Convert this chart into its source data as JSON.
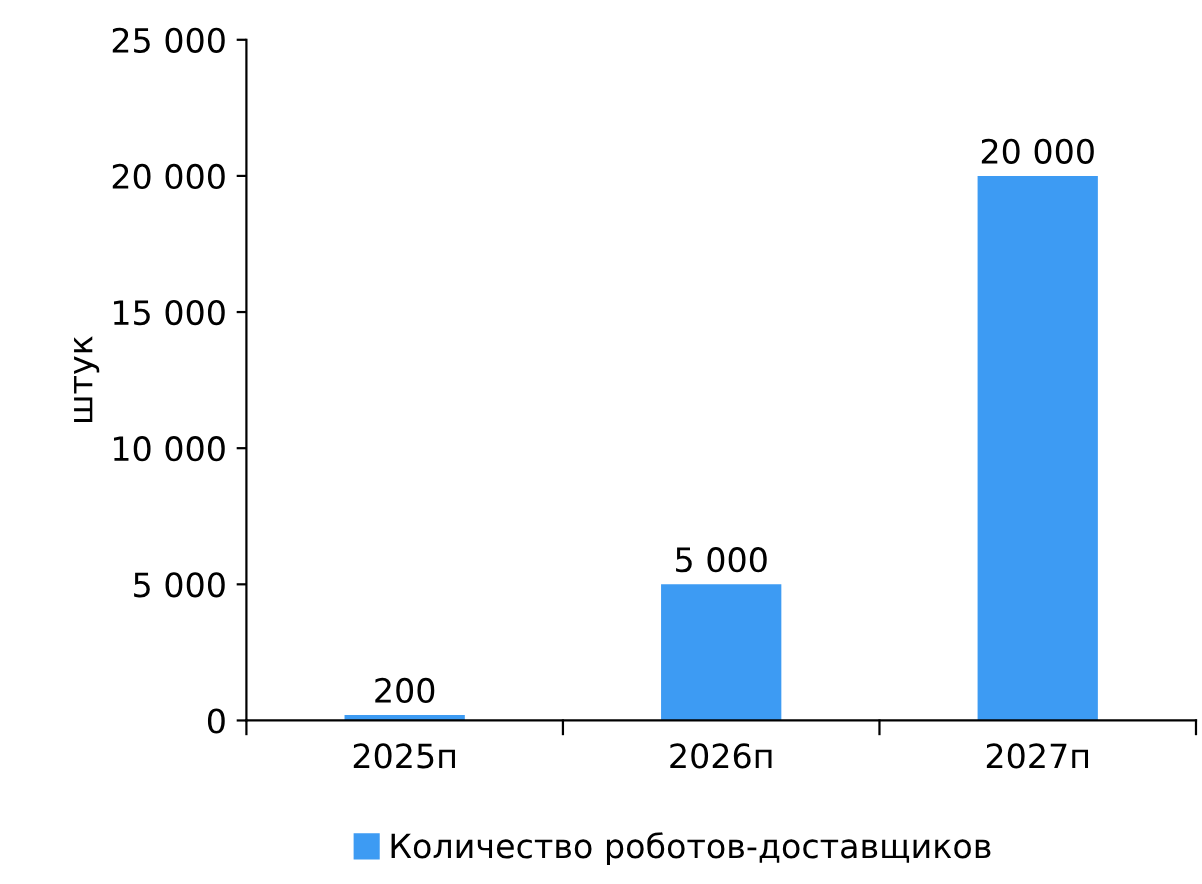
{
  "chart_data": {
    "type": "bar",
    "ylabel": "штук",
    "categories": [
      "2025п",
      "2026п",
      "2027п"
    ],
    "series": [
      {
        "name": "Количество роботов-доставщиков",
        "color": "#3d9bf3",
        "values": [
          200,
          5000,
          20000
        ],
        "value_labels": [
          "200",
          "5 000",
          "20 000"
        ]
      }
    ],
    "ylim": [
      0,
      25000
    ],
    "yticks": [
      {
        "value": 0,
        "label": "0"
      },
      {
        "value": 5000,
        "label": "5 000"
      },
      {
        "value": 10000,
        "label": "10 000"
      },
      {
        "value": 15000,
        "label": "15 000"
      },
      {
        "value": 20000,
        "label": "20 000"
      },
      {
        "value": 25000,
        "label": "25 000"
      }
    ],
    "grid": false,
    "legend": "bottom"
  }
}
